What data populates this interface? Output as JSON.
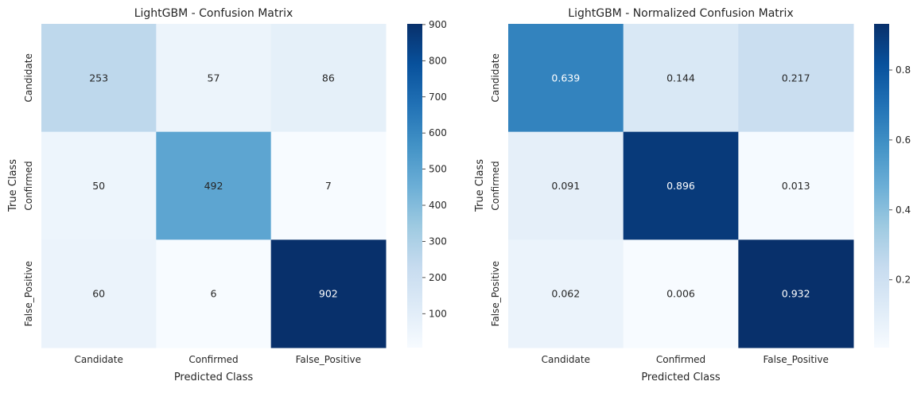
{
  "chart_data": [
    {
      "type": "heatmap",
      "title": "LightGBM - Confusion Matrix",
      "xlabel": "Predicted Class",
      "ylabel": "True Class",
      "x_categories": [
        "Candidate",
        "Confirmed",
        "False_Positive"
      ],
      "y_categories": [
        "Candidate",
        "Confirmed",
        "False_Positive"
      ],
      "values": [
        [
          253,
          57,
          86
        ],
        [
          50,
          492,
          7
        ],
        [
          60,
          6,
          902
        ]
      ],
      "value_labels": [
        [
          "253",
          "57",
          "86"
        ],
        [
          "50",
          "492",
          "7"
        ],
        [
          "60",
          "6",
          "902"
        ]
      ],
      "colorbar": {
        "vmin": 6,
        "vmax": 902,
        "ticks": [
          100,
          200,
          300,
          400,
          500,
          600,
          700,
          800,
          900
        ],
        "tick_labels": [
          "100",
          "200",
          "300",
          "400",
          "500",
          "600",
          "700",
          "800",
          "900"
        ]
      },
      "colormap": "Blues",
      "grid": false
    },
    {
      "type": "heatmap",
      "title": "LightGBM - Normalized Confusion Matrix",
      "xlabel": "Predicted Class",
      "ylabel": "True Class",
      "x_categories": [
        "Candidate",
        "Confirmed",
        "False_Positive"
      ],
      "y_categories": [
        "Candidate",
        "Confirmed",
        "False_Positive"
      ],
      "values": [
        [
          0.639,
          0.144,
          0.217
        ],
        [
          0.091,
          0.896,
          0.013
        ],
        [
          0.062,
          0.006,
          0.932
        ]
      ],
      "value_labels": [
        [
          "0.639",
          "0.144",
          "0.217"
        ],
        [
          "0.091",
          "0.896",
          "0.013"
        ],
        [
          "0.062",
          "0.006",
          "0.932"
        ]
      ],
      "colorbar": {
        "vmin": 0.006,
        "vmax": 0.932,
        "ticks": [
          0.2,
          0.4,
          0.6,
          0.8
        ],
        "tick_labels": [
          "0.2",
          "0.4",
          "0.6",
          "0.8"
        ]
      },
      "colormap": "Blues",
      "grid": false
    }
  ]
}
